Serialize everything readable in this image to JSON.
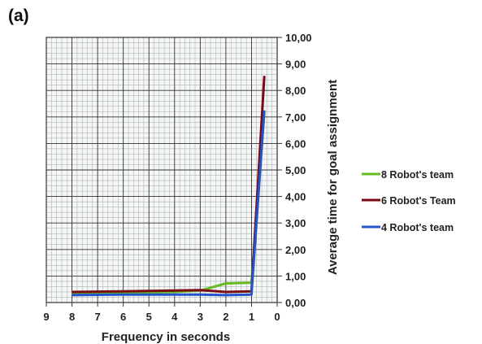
{
  "panel_label": "(a)",
  "chart_data": {
    "type": "line",
    "title": "",
    "xlabel": "Frequency in seconds",
    "ylabel": "Average time for goal assignment",
    "xlim": [
      9,
      0
    ],
    "ylim": [
      0,
      10
    ],
    "x_reversed": true,
    "x_ticks": [
      "9",
      "8",
      "7",
      "6",
      "5",
      "4",
      "3",
      "2",
      "1",
      "0"
    ],
    "y_ticks": [
      "0,00",
      "1,00",
      "2,00",
      "3,00",
      "4,00",
      "5,00",
      "6,00",
      "7,00",
      "8,00",
      "9,00",
      "10,00"
    ],
    "grid": true,
    "legend_position": "right",
    "x": [
      8,
      7,
      6,
      5,
      4,
      3,
      2,
      1,
      0.5
    ],
    "series": [
      {
        "name": "8 Robot's team",
        "color": "#66bb22",
        "values": [
          0.35,
          0.36,
          0.37,
          0.38,
          0.4,
          0.45,
          0.72,
          0.75,
          7.2
        ]
      },
      {
        "name": "6 Robot's Team",
        "color": "#7a0a12",
        "values": [
          0.4,
          0.41,
          0.42,
          0.44,
          0.45,
          0.47,
          0.4,
          0.42,
          8.55
        ]
      },
      {
        "name": "4 Robot's team",
        "color": "#2255cc",
        "values": [
          0.28,
          0.29,
          0.3,
          0.3,
          0.3,
          0.3,
          0.28,
          0.3,
          7.25
        ]
      }
    ]
  }
}
